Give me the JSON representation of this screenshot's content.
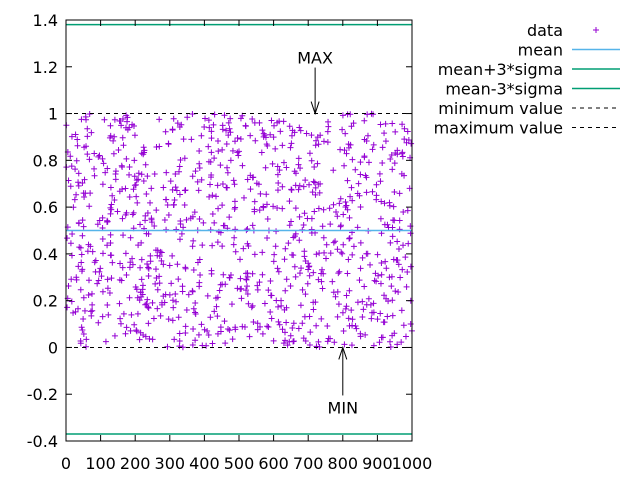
{
  "chart_data": {
    "type": "scatter",
    "title": "",
    "xlabel": "",
    "ylabel": "",
    "xlim": [
      0,
      1000
    ],
    "ylim": [
      -0.4,
      1.4
    ],
    "x_ticks": [
      0,
      100,
      200,
      300,
      400,
      500,
      600,
      700,
      800,
      900,
      1000
    ],
    "x_tick_labels": [
      "0",
      "100",
      "200",
      "300",
      "400",
      "500",
      "600",
      "700",
      "800",
      "900",
      "1000"
    ],
    "y_ticks": [
      -0.4,
      -0.2,
      0,
      0.2,
      0.4,
      0.6,
      0.8,
      1,
      1.2,
      1.4
    ],
    "y_tick_labels": [
      "-0.4",
      "-0.2",
      "0",
      "0.2",
      "0.4",
      "0.6",
      "0.8",
      "1",
      "1.2",
      "1.4"
    ],
    "grid": false,
    "legend_position": "top-right outside",
    "series": [
      {
        "name": "data",
        "kind": "points",
        "marker": "plus",
        "color": "#9400d3",
        "n_points": 1000,
        "distribution": "uniform",
        "x_range": [
          0,
          1000
        ],
        "y_range": [
          0,
          1
        ]
      }
    ],
    "lines": [
      {
        "name": "mean",
        "y": 0.5,
        "color": "#56b4e9",
        "style": "solid"
      },
      {
        "name": "mean+3*sigma",
        "y": 1.38,
        "color": "#009e73",
        "style": "solid"
      },
      {
        "name": "mean-3*sigma",
        "y": -0.37,
        "color": "#009e73",
        "style": "solid"
      },
      {
        "name": "minimum value",
        "y": 0,
        "color": "#000000",
        "style": "dashed"
      },
      {
        "name": "maximum value",
        "y": 1,
        "color": "#000000",
        "style": "dashed"
      }
    ],
    "annotations": [
      {
        "text": "MAX",
        "x": 720,
        "y": 1.0,
        "arrow": "down"
      },
      {
        "text": "MIN",
        "x": 800,
        "y": 0.0,
        "arrow": "up"
      }
    ]
  }
}
